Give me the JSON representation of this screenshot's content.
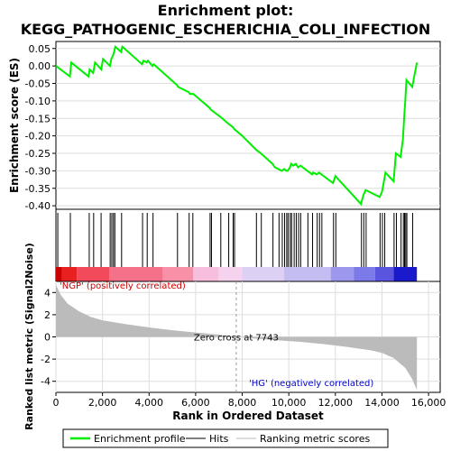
{
  "chart_data": {
    "type": "line",
    "title_line1": "Enrichment plot:",
    "title_line2": "KEGG_PATHOGENIC_ESCHERICHIA_COLI_INFECTION",
    "xlabel": "Rank in Ordered Dataset",
    "ylabel_top": "Enrichment score (ES)",
    "ylabel_bottom": "Ranked list metric (Signal2Noise)",
    "xlim": [
      0,
      16500
    ],
    "xticks": [
      0,
      2000,
      4000,
      6000,
      8000,
      10000,
      12000,
      14000,
      16000
    ],
    "xtick_labels": [
      "0",
      "2,000",
      "4,000",
      "6,000",
      "8,000",
      "10,000",
      "12,000",
      "14,000",
      "16,000"
    ],
    "es_ylim": [
      -0.41,
      0.07
    ],
    "es_yticks": [
      0.05,
      0.0,
      -0.05,
      -0.1,
      -0.15,
      -0.2,
      -0.25,
      -0.3,
      -0.35,
      -0.4
    ],
    "es_ytick_labels": [
      "0.05",
      "0.00",
      "-0.05",
      "-0.10",
      "-0.15",
      "-0.20",
      "-0.25",
      "-0.30",
      "-0.35",
      "-0.40"
    ],
    "metric_ylim": [
      -5,
      5
    ],
    "metric_yticks": [
      4,
      2,
      0,
      -2,
      -4
    ],
    "metric_ytick_labels": [
      "4",
      "2",
      "0",
      "-2",
      "-4"
    ],
    "series": [
      {
        "name": "Enrichment profile",
        "color": "#00ee00",
        "x": [
          0,
          600,
          660,
          1400,
          1450,
          1600,
          1680,
          1950,
          2020,
          2320,
          2380,
          2450,
          2500,
          2550,
          2800,
          2850,
          3700,
          3760,
          3900,
          3950,
          4150,
          4200,
          5200,
          5250,
          5700,
          5750,
          5900,
          6600,
          6650,
          7050,
          7400,
          7600,
          7650,
          8000,
          8600,
          8800,
          9300,
          9400,
          9550,
          9700,
          9800,
          9900,
          9950,
          10050,
          10100,
          10200,
          10300,
          10400,
          10500,
          10800,
          11000,
          11050,
          11200,
          11300,
          11400,
          11900,
          12000,
          13100,
          13200,
          13300,
          13900,
          14000,
          14100,
          14150,
          14500,
          14600,
          14800,
          14900,
          14950,
          15000,
          15050,
          15300,
          15500
        ],
        "y": [
          0.0,
          -0.03,
          0.01,
          -0.03,
          -0.01,
          -0.02,
          0.01,
          -0.01,
          0.02,
          0.0,
          0.02,
          0.03,
          0.04,
          0.055,
          0.04,
          0.055,
          0.005,
          0.015,
          0.01,
          0.015,
          0.0,
          0.005,
          -0.055,
          -0.06,
          -0.075,
          -0.08,
          -0.08,
          -0.12,
          -0.125,
          -0.145,
          -0.165,
          -0.175,
          -0.18,
          -0.2,
          -0.24,
          -0.25,
          -0.28,
          -0.29,
          -0.295,
          -0.3,
          -0.295,
          -0.3,
          -0.3,
          -0.29,
          -0.28,
          -0.285,
          -0.28,
          -0.29,
          -0.285,
          -0.3,
          -0.31,
          -0.305,
          -0.31,
          -0.305,
          -0.31,
          -0.335,
          -0.315,
          -0.395,
          -0.37,
          -0.355,
          -0.375,
          -0.36,
          -0.325,
          -0.305,
          -0.33,
          -0.25,
          -0.26,
          -0.21,
          -0.15,
          -0.1,
          -0.04,
          -0.06,
          0.01
        ]
      }
    ],
    "hits_x": [
      80,
      620,
      1430,
      1620,
      1940,
      2330,
      2400,
      2470,
      2530,
      2820,
      3720,
      3920,
      4170,
      5220,
      5720,
      5880,
      6620,
      6680,
      7080,
      7420,
      7610,
      7670,
      8610,
      8820,
      9320,
      9580,
      9720,
      9820,
      9910,
      9970,
      10060,
      10120,
      10230,
      10320,
      10420,
      10510,
      10820,
      11020,
      11220,
      11320,
      11420,
      11920,
      12020,
      13120,
      13220,
      13320,
      13920,
      14020,
      14120,
      14520,
      14620,
      14820,
      14920,
      14970,
      15020,
      15070,
      15320
    ],
    "metric_points": {
      "x": [
        0,
        200,
        500,
        1000,
        1500,
        2000,
        3000,
        4000,
        5000,
        6000,
        7000,
        7743,
        8500,
        9500,
        10500,
        11500,
        12500,
        13500,
        14000,
        14500,
        15000,
        15300,
        15500
      ],
      "y": [
        4.7,
        3.8,
        3.0,
        2.3,
        1.8,
        1.5,
        1.15,
        0.85,
        0.6,
        0.4,
        0.2,
        0.0,
        -0.15,
        -0.3,
        -0.45,
        -0.65,
        -0.9,
        -1.2,
        -1.45,
        -1.9,
        -2.8,
        -3.8,
        -4.8
      ]
    },
    "zero_cross_x": 7743,
    "zero_cross_label": "Zero cross at 7743",
    "pos_label": "'NGP' (positively correlated)",
    "neg_label": "'HG' (negatively correlated)",
    "pos_color": "#cc0000",
    "neg_color": "#0000cc",
    "heat_bands": [
      {
        "x0": 0,
        "x1": 250,
        "color": "#cc0000"
      },
      {
        "x0": 250,
        "x1": 900,
        "color": "#e82020"
      },
      {
        "x0": 900,
        "x1": 2300,
        "color": "#f24a5a"
      },
      {
        "x0": 2300,
        "x1": 4600,
        "color": "#f57089"
      },
      {
        "x0": 4600,
        "x1": 5900,
        "color": "#f891a8"
      },
      {
        "x0": 5900,
        "x1": 7000,
        "color": "#f7bfdd"
      },
      {
        "x0": 7000,
        "x1": 8000,
        "color": "#f5d3ef"
      },
      {
        "x0": 8000,
        "x1": 9800,
        "color": "#dcd0f4"
      },
      {
        "x0": 9800,
        "x1": 11800,
        "color": "#c3bdf2"
      },
      {
        "x0": 11800,
        "x1": 12800,
        "color": "#9c98ee"
      },
      {
        "x0": 12800,
        "x1": 13700,
        "color": "#7c79e8"
      },
      {
        "x0": 13700,
        "x1": 14500,
        "color": "#5a55de"
      },
      {
        "x0": 14500,
        "x1": 15500,
        "color": "#1a1acc"
      }
    ],
    "legend": [
      {
        "label": "Enrichment profile",
        "color": "#00ee00"
      },
      {
        "label": "Hits",
        "color": "#000000"
      },
      {
        "label": "Ranking metric scores",
        "color": "#bbbbbb"
      }
    ],
    "grid": true
  }
}
